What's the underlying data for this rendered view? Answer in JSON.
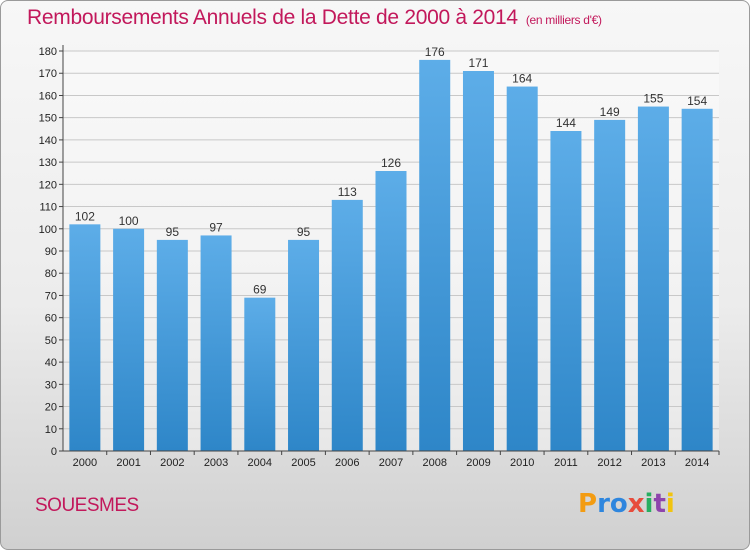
{
  "title": "Remboursements Annuels de la Dette de 2000 à 2014",
  "unit": "(en milliers d'€)",
  "commune": "SOUESMES",
  "logo": {
    "letters": [
      "P",
      "r",
      "o",
      "x",
      "i",
      "t",
      "i"
    ],
    "colors": [
      "#f39c12",
      "#2e86de",
      "#2e86de",
      "#e74c3c",
      "#27ae60",
      "#8e44ad",
      "#f1c40f"
    ]
  },
  "colors": {
    "bar_light": "#5dade8",
    "bar_dark": "#2e86c8",
    "title": "#c2185b"
  },
  "chart_data": {
    "type": "bar",
    "title": "Remboursements Annuels de la Dette de 2000 à 2014",
    "ylabel": "en milliers d'€",
    "xlabel": "",
    "categories": [
      "2000",
      "2001",
      "2002",
      "2003",
      "2004",
      "2005",
      "2006",
      "2007",
      "2008",
      "2009",
      "2010",
      "2011",
      "2012",
      "2013",
      "2014"
    ],
    "values": [
      102,
      100,
      95,
      97,
      69,
      95,
      113,
      126,
      176,
      171,
      164,
      144,
      149,
      155,
      154
    ],
    "ylim": [
      0,
      180
    ],
    "yticks": [
      0,
      10,
      20,
      30,
      40,
      50,
      60,
      70,
      80,
      90,
      100,
      110,
      120,
      130,
      140,
      150,
      160,
      170,
      180
    ],
    "grid": true
  }
}
